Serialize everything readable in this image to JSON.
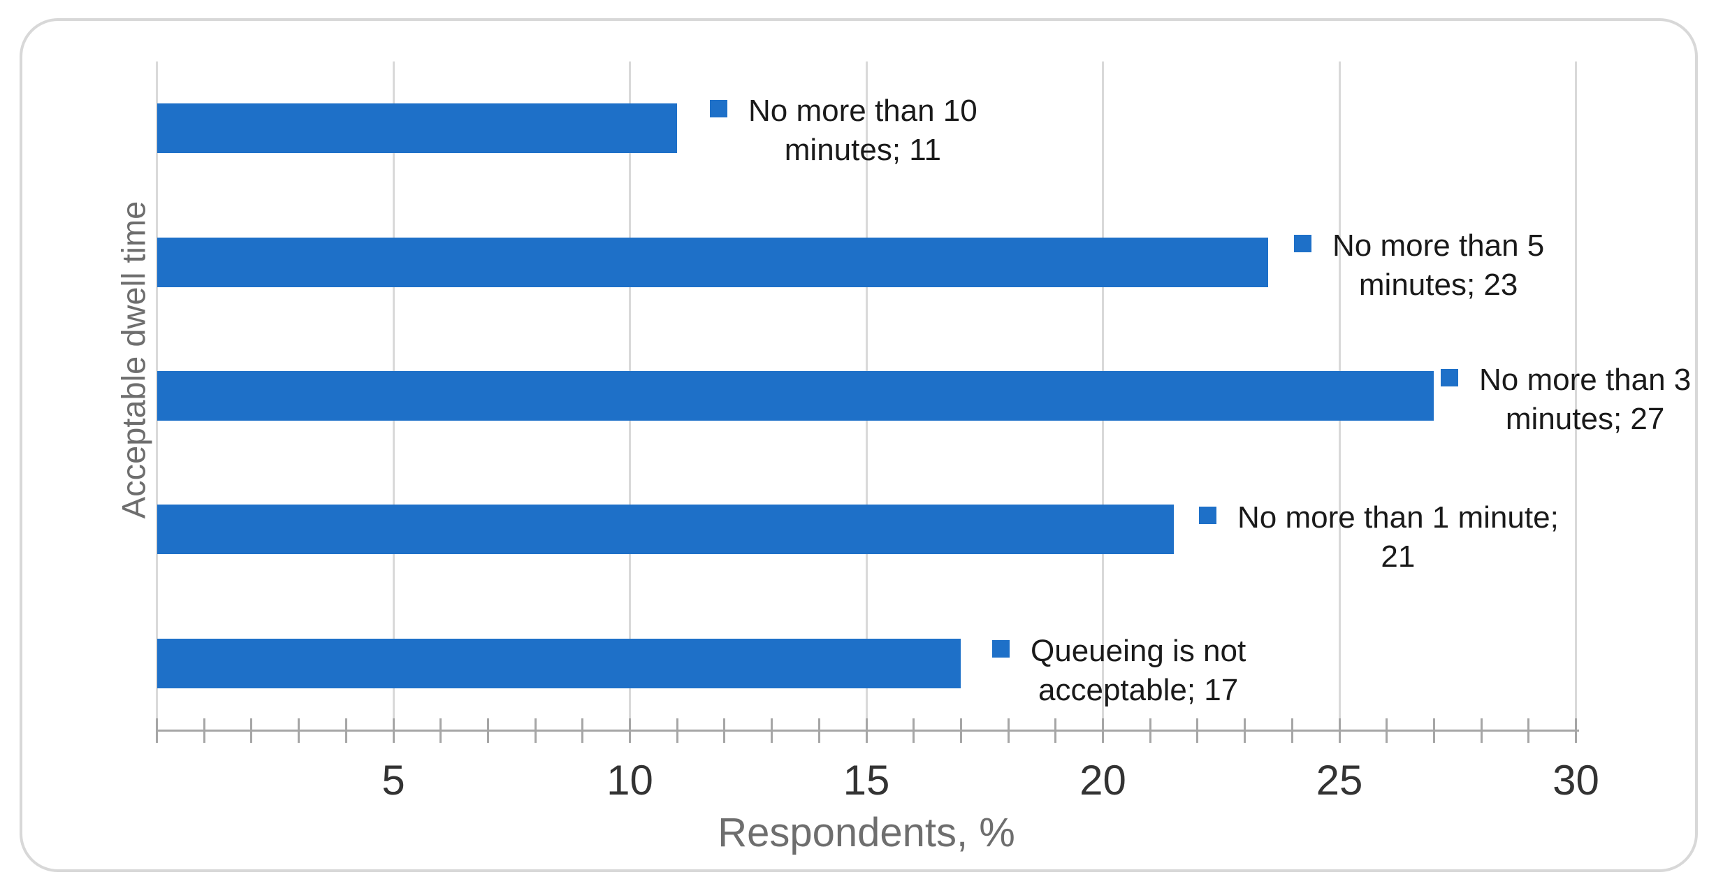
{
  "chart_data": {
    "type": "bar",
    "orientation": "horizontal",
    "title": "",
    "xlabel": "Respondents, %",
    "ylabel": "Acceptable dwell time",
    "xlim": [
      0,
      30
    ],
    "x_major_ticks": [
      5,
      10,
      15,
      20,
      25,
      30
    ],
    "x_minor_tick_unit": 1,
    "grid": true,
    "legend_position": "none",
    "categories_top_to_bottom": [
      "No more than 10 minutes",
      "No more than 5 minutes",
      "No more than 3 minutes",
      "No more than 1 minute",
      "Queueing is not acceptable"
    ],
    "values": [
      11,
      23,
      27,
      21,
      17
    ],
    "bar_extents_rendered": [
      11,
      23.5,
      27,
      21.5,
      17
    ],
    "data_labels": [
      {
        "line1": "No more than 10",
        "line2": "minutes; 11"
      },
      {
        "line1": "No more than 5",
        "line2": "minutes; 23"
      },
      {
        "line1": "No more than 3",
        "line2": "minutes; 27"
      },
      {
        "line1": "No more than 1 minute;",
        "line2": "21"
      },
      {
        "line1": "Queueing is not",
        "line2": "acceptable; 17"
      }
    ]
  },
  "colors": {
    "bar": "#1e70c8",
    "marker": "#1e70c8",
    "gridline": "#d9d9d9",
    "axis_line": "#a6a6a6",
    "tick_label": "#333333",
    "axis_title": "#6e6e6e",
    "data_label_text": "#1a1a1a",
    "frame_border": "#d8d8d8",
    "background": "#ffffff"
  }
}
